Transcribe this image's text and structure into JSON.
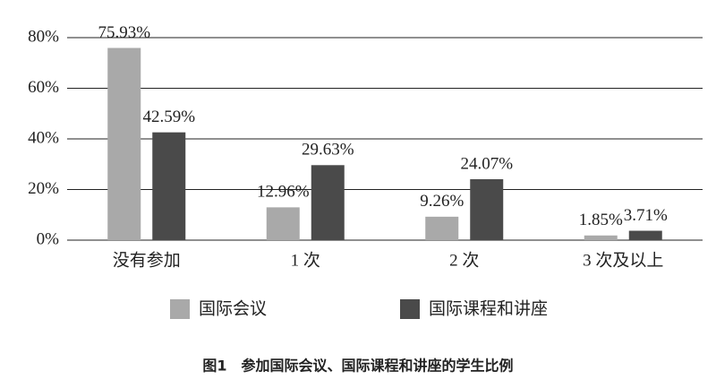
{
  "chart_data": {
    "type": "bar",
    "title": "图1　参加国际会议、国际课程和讲座的学生比例",
    "categories": [
      "没有参加",
      "1 次",
      "2 次",
      "3 次及以上"
    ],
    "series": [
      {
        "name": "国际会议",
        "color": "#a9a9a9",
        "values": [
          75.93,
          12.96,
          9.26,
          1.85
        ],
        "value_labels": [
          "75.93%",
          "12.96%",
          "9.26%",
          "1.85%"
        ]
      },
      {
        "name": "国际课程和讲座",
        "color": "#4a4a4a",
        "values": [
          42.59,
          29.63,
          24.07,
          3.71
        ],
        "value_labels": [
          "42.59%",
          "29.63%",
          "24.07%",
          "3.71%"
        ]
      }
    ],
    "ylim": [
      0,
      80
    ],
    "yticks": [
      {
        "value": 0,
        "label": "0%"
      },
      {
        "value": 20,
        "label": "20%"
      },
      {
        "value": 40,
        "label": "40%"
      },
      {
        "value": 60,
        "label": "60%"
      },
      {
        "value": 80,
        "label": "80%"
      }
    ],
    "grid": true
  }
}
